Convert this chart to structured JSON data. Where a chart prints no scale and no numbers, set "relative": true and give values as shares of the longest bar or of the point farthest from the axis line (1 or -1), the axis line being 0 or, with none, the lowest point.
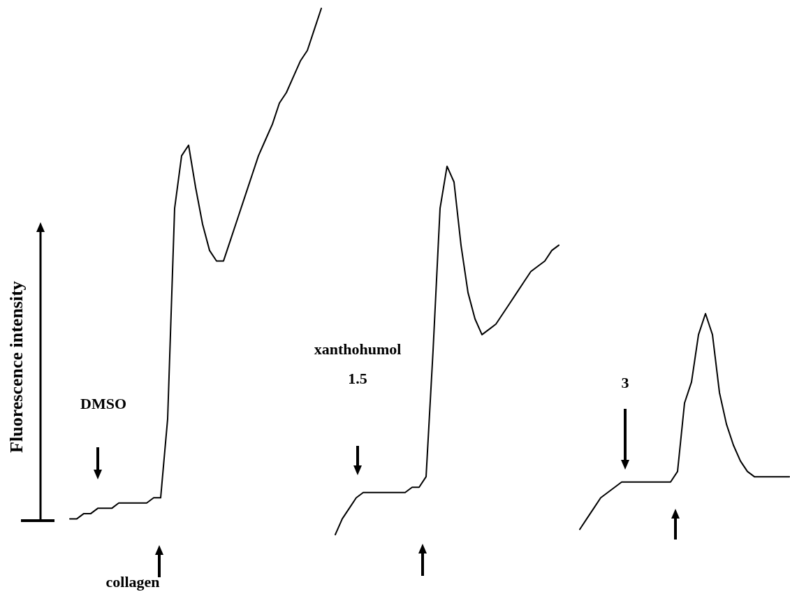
{
  "chart_data": {
    "type": "line",
    "relative": true,
    "ylabel": "Fluorescence intensity",
    "annotations": [
      "DMSO",
      "xanthohumol",
      "1.5",
      "3",
      "collagen"
    ],
    "categories": [
      null,
      null,
      null,
      null,
      null,
      null,
      null,
      null,
      null,
      null,
      null,
      null,
      null,
      null,
      null,
      null,
      null,
      null,
      null,
      null,
      null,
      null,
      null,
      null,
      null,
      null,
      null,
      null,
      null,
      null,
      null,
      null,
      null,
      null,
      null,
      null,
      null,
      null,
      null,
      null,
      null,
      null,
      null,
      null,
      null,
      null,
      null,
      null,
      null,
      null,
      null,
      null,
      null,
      null,
      null,
      null,
      null,
      null,
      null,
      null,
      null,
      null,
      null,
      null,
      null,
      null,
      null,
      null,
      null,
      null,
      null,
      null,
      null,
      null,
      null,
      null,
      null,
      null,
      null,
      null,
      null,
      null,
      null,
      null,
      null,
      null,
      null,
      null,
      null,
      null,
      null,
      null,
      null,
      null,
      null,
      null,
      null,
      null,
      null,
      null,
      null,
      null,
      null,
      null
    ],
    "series": [
      {
        "color": "#000000",
        "values": [
          0.03,
          0.03,
          0.04,
          0.04,
          0.05,
          0.05,
          0.05,
          0.06,
          0.06,
          0.06,
          0.06,
          0.06,
          0.07,
          0.07,
          0.22,
          0.62,
          0.72,
          0.74,
          0.66,
          0.59,
          0.54,
          0.52,
          0.52,
          0.56,
          0.6,
          0.64,
          0.68,
          0.72,
          0.75,
          0.78,
          0.82,
          0.84,
          0.87,
          0.9,
          0.92,
          0.96,
          1,
          null,
          null,
          null,
          null,
          null,
          null,
          null,
          null,
          null,
          null,
          null,
          null,
          null,
          null,
          null,
          null,
          null,
          null,
          null,
          null,
          null,
          null,
          null,
          null,
          null,
          null,
          null,
          null,
          null,
          null,
          null,
          null,
          null,
          null,
          null,
          null,
          null,
          null,
          null,
          null,
          null,
          null,
          null,
          null,
          null,
          null,
          null,
          null,
          null,
          null,
          null,
          null,
          null,
          null,
          null,
          null,
          null,
          null,
          null,
          null,
          null,
          null,
          null,
          null,
          null,
          null,
          null
        ]
      },
      {
        "color": "#000000",
        "values": [
          null,
          null,
          null,
          null,
          null,
          null,
          null,
          null,
          null,
          null,
          null,
          null,
          null,
          null,
          null,
          null,
          null,
          null,
          null,
          null,
          null,
          null,
          null,
          null,
          null,
          null,
          null,
          null,
          null,
          null,
          null,
          null,
          null,
          null,
          null,
          null,
          null,
          null,
          0,
          0.03,
          0.05,
          0.07,
          0.08,
          0.08,
          0.08,
          0.08,
          0.08,
          0.08,
          0.08,
          0.09,
          0.09,
          0.11,
          0.35,
          0.62,
          0.7,
          0.67,
          0.55,
          0.46,
          0.41,
          0.38,
          0.39,
          0.4,
          0.42,
          0.44,
          0.46,
          0.48,
          0.5,
          0.51,
          0.52,
          0.54,
          0.55,
          null,
          null,
          null,
          null,
          null,
          null,
          null,
          null,
          null,
          null,
          null,
          null,
          null,
          null,
          null,
          null,
          null,
          null,
          null,
          null,
          null,
          null,
          null,
          null,
          null,
          null,
          null,
          null,
          null,
          null,
          null,
          null,
          null
        ]
      },
      {
        "color": "#000000",
        "values": [
          null,
          null,
          null,
          null,
          null,
          null,
          null,
          null,
          null,
          null,
          null,
          null,
          null,
          null,
          null,
          null,
          null,
          null,
          null,
          null,
          null,
          null,
          null,
          null,
          null,
          null,
          null,
          null,
          null,
          null,
          null,
          null,
          null,
          null,
          null,
          null,
          null,
          null,
          null,
          null,
          null,
          null,
          null,
          null,
          null,
          null,
          null,
          null,
          null,
          null,
          null,
          null,
          null,
          null,
          null,
          null,
          null,
          null,
          null,
          null,
          null,
          null,
          null,
          null,
          null,
          null,
          null,
          null,
          null,
          null,
          null,
          null,
          null,
          0.01,
          0.03,
          0.05,
          0.07,
          0.08,
          0.09,
          0.1,
          0.1,
          0.1,
          0.1,
          0.1,
          0.1,
          0.1,
          0.1,
          0.12,
          0.25,
          0.29,
          0.38,
          0.42,
          0.38,
          0.27,
          0.21,
          0.17,
          0.14,
          0.12,
          0.11,
          0.11,
          0.11,
          0.11,
          0.11,
          0.11
        ]
      }
    ]
  }
}
